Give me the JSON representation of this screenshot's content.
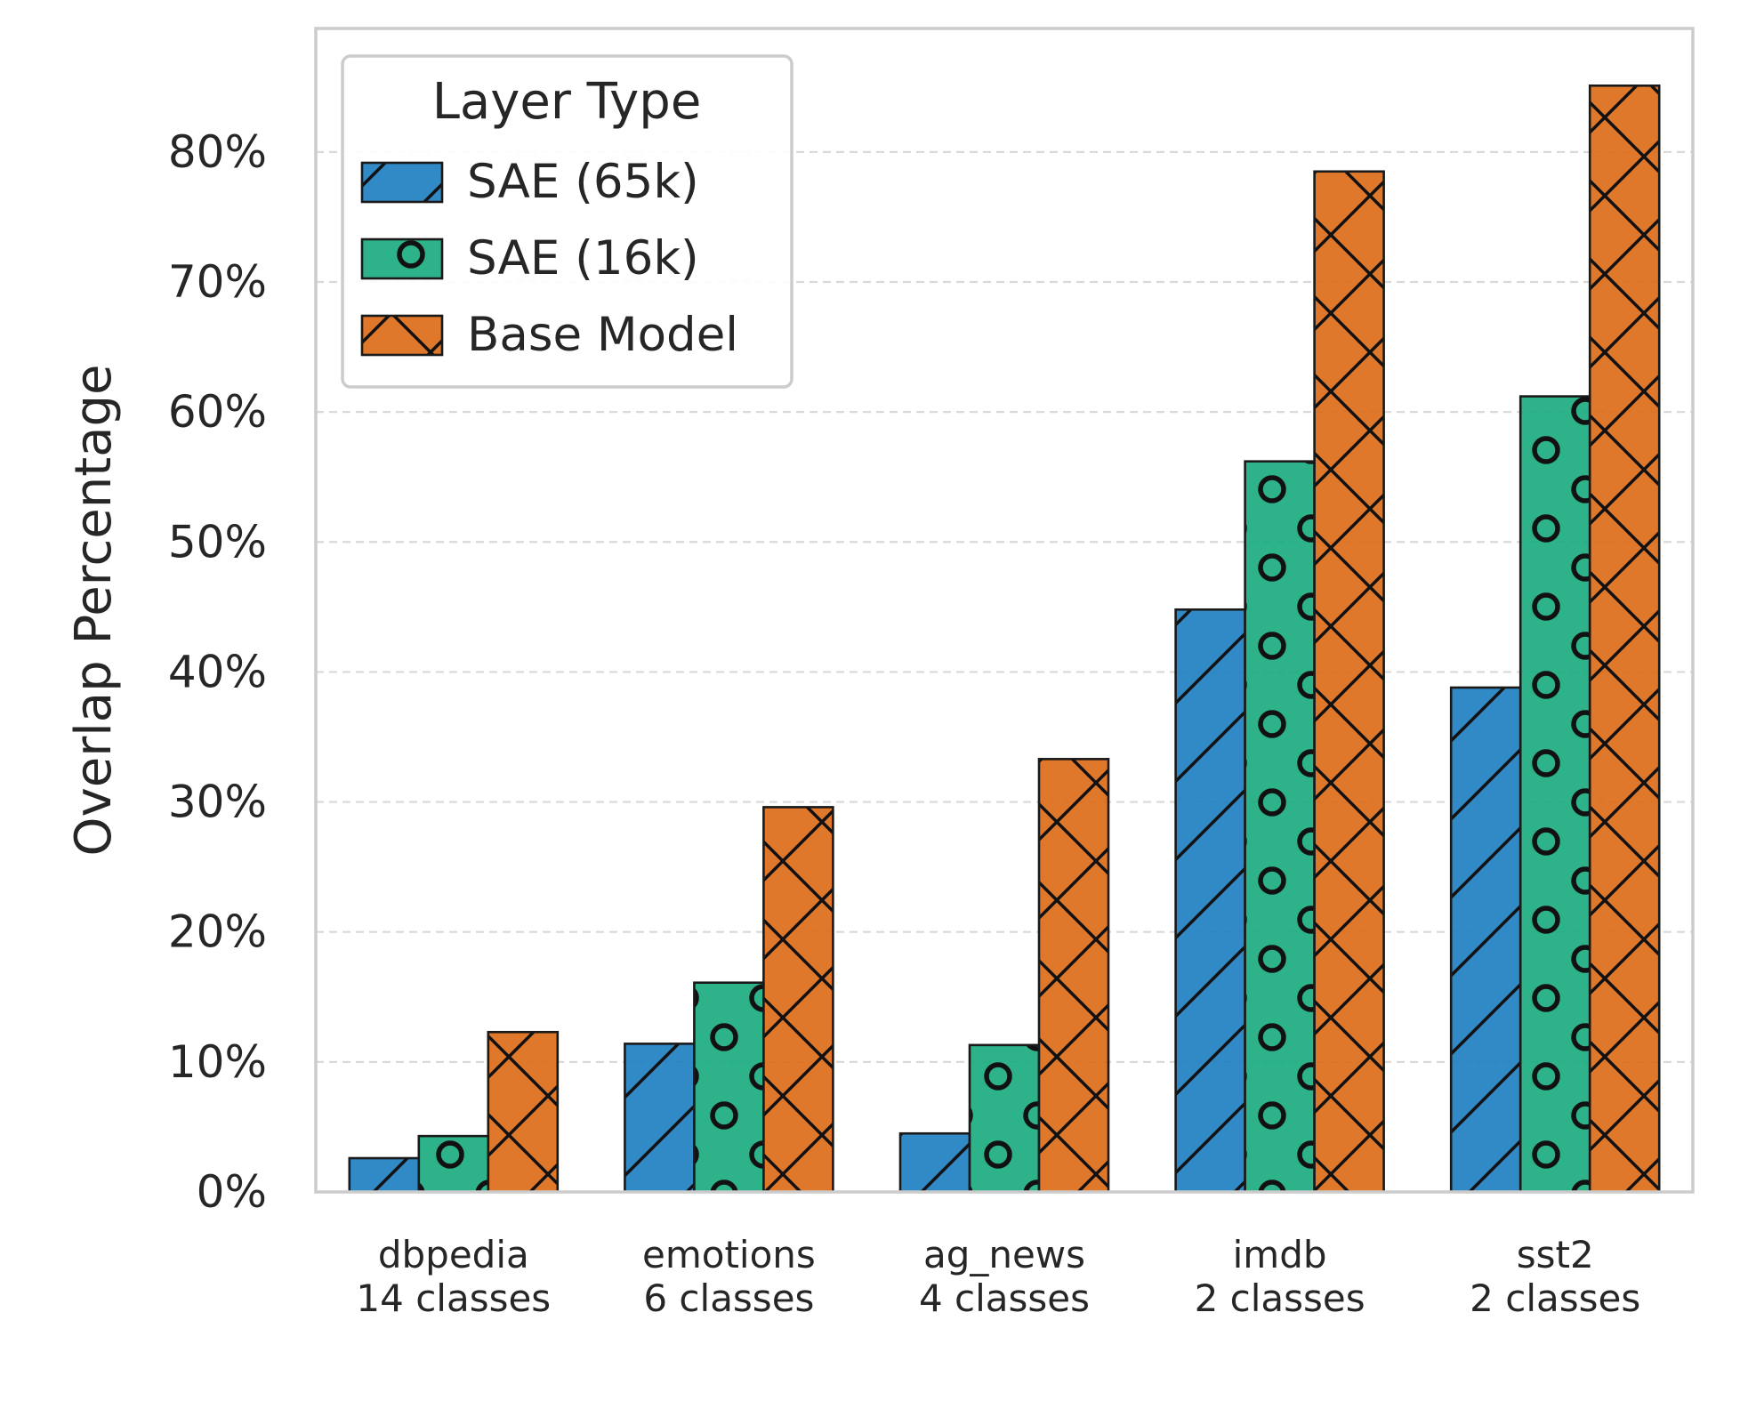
{
  "chart_data": {
    "type": "bar",
    "categories": [
      "dbpedia\n14 classes",
      "emotions\n6 classes",
      "ag_news\n4 classes",
      "imdb\n2 classes",
      "sst2\n2 classes"
    ],
    "ylabel": "Overlap Percentage",
    "xlabel": "",
    "ylim": [
      0,
      89.5
    ],
    "yticks": [
      0,
      10,
      20,
      30,
      40,
      50,
      60,
      70,
      80
    ],
    "ytick_labels": [
      "0%",
      "10%",
      "20%",
      "30%",
      "40%",
      "50%",
      "60%",
      "70%",
      "80%"
    ],
    "grid": "horizontal dashed",
    "legend": {
      "title": "Layer Type",
      "position": "top-left"
    },
    "series": [
      {
        "name": "SAE (65k)",
        "color": "#1f7fc1",
        "hatch": "diagonal",
        "values": [
          2.6,
          11.4,
          4.5,
          44.8,
          38.8
        ]
      },
      {
        "name": "SAE (16k)",
        "color": "#1bab80",
        "hatch": "circles",
        "values": [
          4.3,
          16.1,
          11.3,
          56.2,
          61.2
        ]
      },
      {
        "name": "Base Model",
        "color": "#dc6c18",
        "hatch": "crosses",
        "values": [
          12.3,
          29.6,
          33.3,
          78.5,
          85.1
        ]
      }
    ]
  }
}
